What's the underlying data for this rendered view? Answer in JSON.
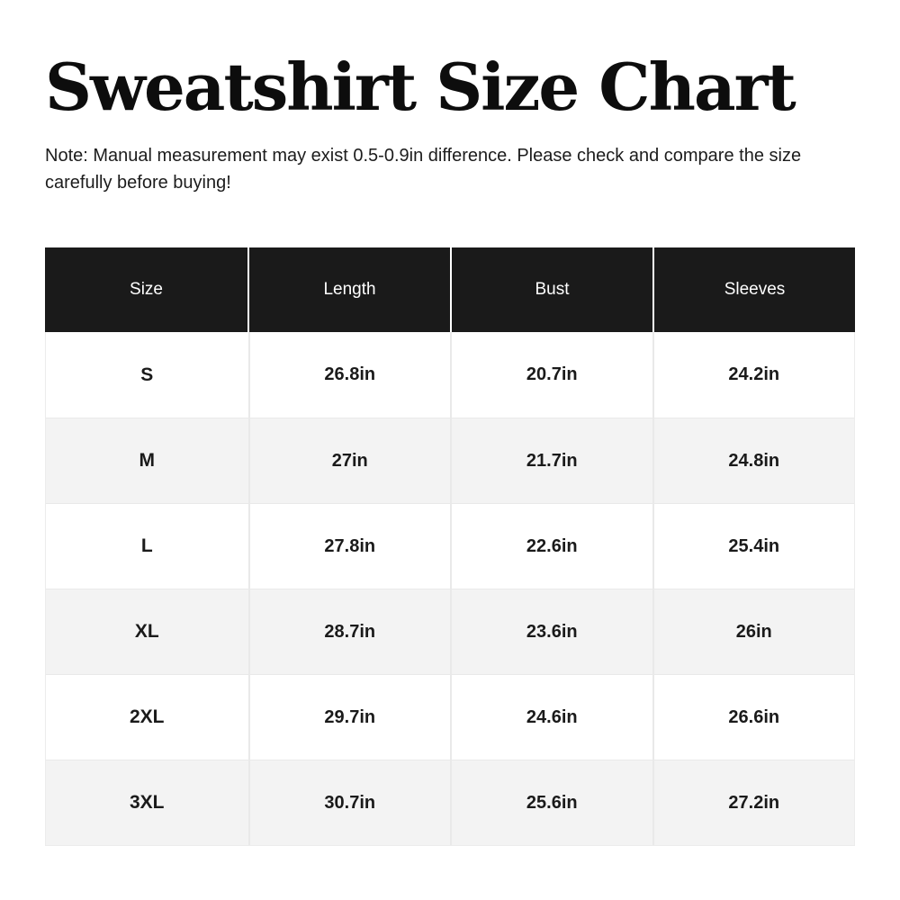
{
  "chart_data": {
    "type": "table",
    "title": "Sweatshirt Size Chart",
    "note": "Note: Manual measurement may exist 0.5-0.9in difference. Please check and compare the size carefully before buying!",
    "columns": [
      "Size",
      "Length",
      "Bust",
      "Sleeves"
    ],
    "rows": [
      [
        "S",
        "26.8in",
        "20.7in",
        "24.2in"
      ],
      [
        "M",
        "27in",
        "21.7in",
        "24.8in"
      ],
      [
        "L",
        "27.8in",
        "22.6in",
        "25.4in"
      ],
      [
        "XL",
        "28.7in",
        "23.6in",
        "26in"
      ],
      [
        "2XL",
        "29.7in",
        "24.6in",
        "26.6in"
      ],
      [
        "3XL",
        "30.7in",
        "25.6in",
        "27.2in"
      ]
    ],
    "units": "in",
    "layout": {
      "header_bg": "#1a1a1a",
      "header_text_color": "#ffffff",
      "row_alt_bg": "#f3f3f3",
      "border_color": "#e9e9e9",
      "columns_equal_width": true
    }
  }
}
